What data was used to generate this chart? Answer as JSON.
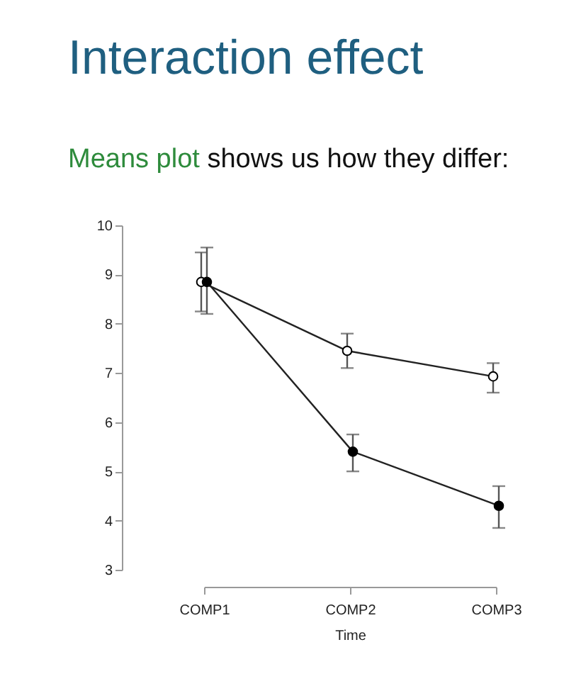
{
  "chart_data": {
    "type": "line",
    "title": "Interaction effect",
    "subtitle": "Means plot shows us how they differ:",
    "xlabel": "Time",
    "categories": [
      "COMP1",
      "COMP2",
      "COMP3"
    ],
    "series": [
      {
        "color": "#ffffff",
        "values": [
          8.85,
          7.45,
          6.93
        ],
        "errors": [
          [
            8.25,
            9.45
          ],
          [
            7.1,
            7.8
          ],
          [
            6.6,
            7.2
          ]
        ]
      },
      {
        "color": "#000000",
        "values": [
          8.85,
          5.4,
          4.3
        ],
        "errors": [
          [
            8.2,
            9.55
          ],
          [
            5.0,
            5.75
          ],
          [
            3.85,
            4.7
          ]
        ]
      }
    ],
    "ylim": [
      3,
      10
    ],
    "yticks": [
      3,
      4,
      5,
      6,
      7,
      8,
      9,
      10
    ],
    "marker": "circle",
    "line_style": "solid"
  }
}
